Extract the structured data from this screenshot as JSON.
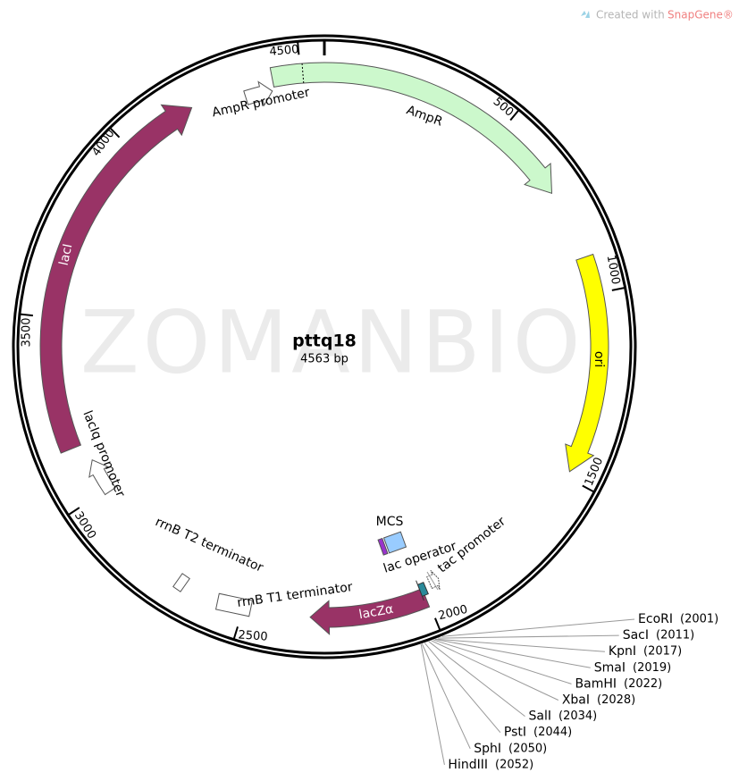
{
  "header": {
    "prefix": "Created with",
    "brand": "SnapGene®"
  },
  "watermark": "ZOMANBIO",
  "plasmid": {
    "name": "pttq18",
    "length": "4563 bp"
  },
  "ticks": [
    "500",
    "1000",
    "1500",
    "2000",
    "2500",
    "3000",
    "3500",
    "4000",
    "4500"
  ],
  "features": [
    {
      "label": "AmpR"
    },
    {
      "label": "ori"
    },
    {
      "label": "lacI"
    },
    {
      "label": "lacZα"
    },
    {
      "label": "AmpR promoter"
    },
    {
      "label": "lacIq promoter"
    },
    {
      "label": "rrnB T2 terminator"
    },
    {
      "label": "rrnB T1 terminator"
    },
    {
      "label": "MCS"
    },
    {
      "label": "lac operator"
    },
    {
      "label": "tac promoter"
    }
  ],
  "sites": [
    {
      "name": "EcoRI",
      "position": "(2001)"
    },
    {
      "name": "SacI",
      "position": "(2011)"
    },
    {
      "name": "KpnI",
      "position": "(2017)"
    },
    {
      "name": "SmaI",
      "position": "(2019)"
    },
    {
      "name": "BamHI",
      "position": "(2022)"
    },
    {
      "name": "XbaI",
      "position": "(2028)"
    },
    {
      "name": "SalI",
      "position": "(2034)"
    },
    {
      "name": "PstI",
      "position": "(2044)"
    },
    {
      "name": "SphI",
      "position": "(2050)"
    },
    {
      "name": "HindIII",
      "position": "(2052)"
    }
  ]
}
